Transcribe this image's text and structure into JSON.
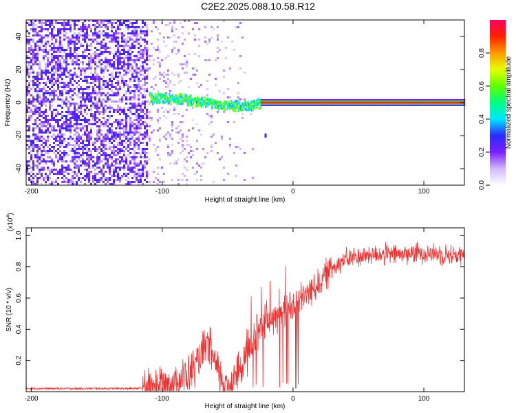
{
  "title": "C2E2.2025.088.10.58.R12",
  "chart_data": [
    {
      "type": "heatmap",
      "xlabel": "Height of straight line (km)",
      "ylabel": "Frequency (Hz)",
      "xlim": [
        -204,
        131
      ],
      "ylim": [
        -50,
        50
      ],
      "xticks": [
        -200,
        -100,
        0,
        100
      ],
      "yticks": [
        -40,
        -20,
        0,
        20,
        40
      ],
      "colorbar": {
        "label": "Normalized spectral amplitude",
        "range": [
          0,
          1
        ],
        "ticks": [
          "0.0",
          "0.2",
          "0.4",
          "0.6",
          "0.8"
        ],
        "colormap": [
          "#ffffff",
          "#d0b8ff",
          "#7a1fff",
          "#2a2aff",
          "#00e6ff",
          "#00ff80",
          "#60ff00",
          "#e6ff00",
          "#ff9900",
          "#ff2000",
          "#ff0060"
        ]
      },
      "grid": false,
      "features": {
        "noise_region_km": [
          -204,
          -112
        ],
        "transition_region_km": [
          -112,
          -25
        ],
        "carrier_frequency_hz": [
          [
            -110,
            2.5
          ],
          [
            -80,
            1.5
          ],
          [
            -55,
            -1.5
          ],
          [
            -35,
            -3
          ],
          [
            -25,
            0
          ],
          [
            131,
            0
          ]
        ],
        "carrier_amplitude_after_minus25km": 0.9,
        "spur": {
          "x": -21,
          "y": -20
        }
      }
    },
    {
      "type": "line",
      "xlabel": "Height of straight line (km)",
      "ylabel": "SNR (10 * v/v)",
      "y_multiplier_label": "(x10",
      "y_multiplier_exponent": "4",
      "xlim": [
        -204,
        131
      ],
      "ylim": [
        0,
        1.05
      ],
      "xticks": [
        -200,
        -100,
        0,
        100
      ],
      "yticks": [
        "0.2",
        "0.4",
        "0.6",
        "0.8",
        "1.0"
      ],
      "series": [
        {
          "color": "#f03030",
          "envelope_points": [
            [
              -204,
              0.02
            ],
            [
              -120,
              0.02
            ],
            [
              -110,
              0.03
            ],
            [
              -100,
              0.05
            ],
            [
              -90,
              0.07
            ],
            [
              -80,
              0.1
            ],
            [
              -70,
              0.22
            ],
            [
              -65,
              0.32
            ],
            [
              -60,
              0.18
            ],
            [
              -55,
              0.08
            ],
            [
              -50,
              0.04
            ],
            [
              -40,
              0.15
            ],
            [
              -30,
              0.35
            ],
            [
              -20,
              0.45
            ],
            [
              -10,
              0.5
            ],
            [
              0,
              0.55
            ],
            [
              10,
              0.62
            ],
            [
              20,
              0.7
            ],
            [
              30,
              0.8
            ],
            [
              40,
              0.85
            ],
            [
              60,
              0.88
            ],
            [
              80,
              0.88
            ],
            [
              100,
              0.89
            ],
            [
              131,
              0.87
            ]
          ]
        }
      ],
      "grid": false
    }
  ]
}
